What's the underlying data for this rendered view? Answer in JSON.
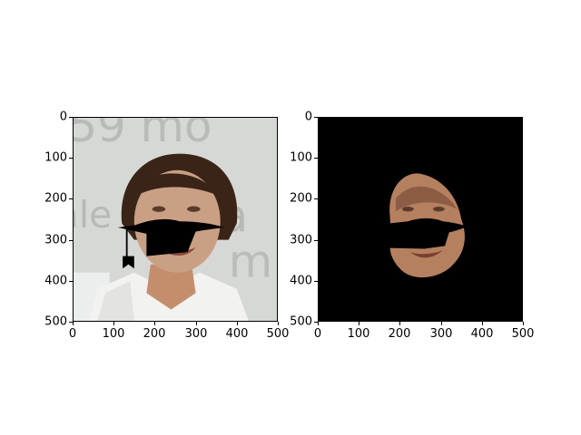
{
  "figure": {
    "panels": [
      {
        "id": "left",
        "content": "original-photo-with-black-mustache-mask",
        "xticks": [
          "0",
          "100",
          "200",
          "300",
          "400",
          "500"
        ],
        "yticks": [
          "0",
          "100",
          "200",
          "300",
          "400",
          "500"
        ]
      },
      {
        "id": "right",
        "content": "segmented-face-on-black-background",
        "xticks": [
          "0",
          "100",
          "200",
          "300",
          "400",
          "500"
        ],
        "yticks": [
          "0",
          "100",
          "200",
          "300",
          "400",
          "500"
        ]
      }
    ]
  },
  "colors": {
    "skin": "#c9906d",
    "hair": "#3a2418",
    "background_left": "#d8dbd8",
    "mask": "#000000"
  }
}
